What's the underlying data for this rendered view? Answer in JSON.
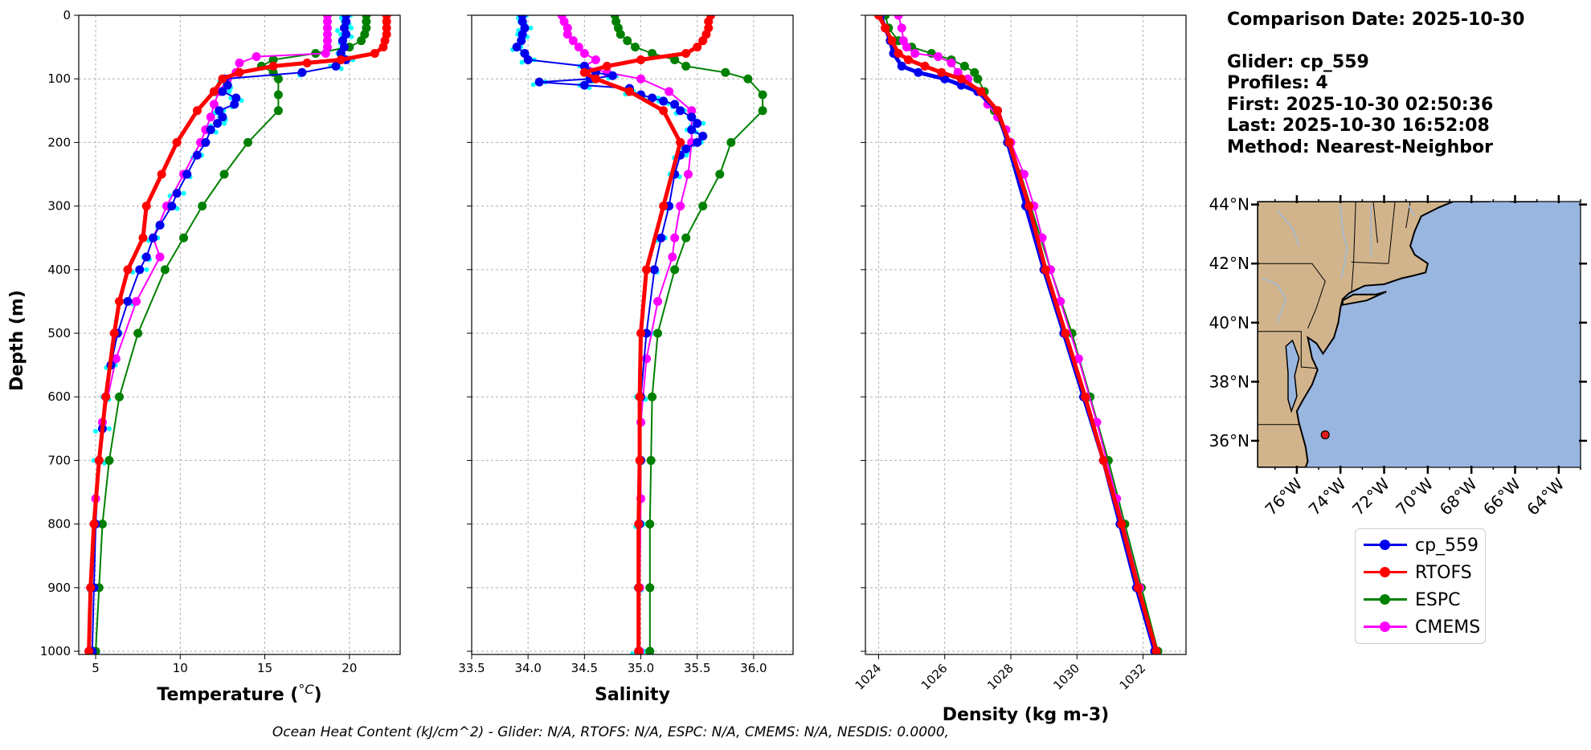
{
  "chart_data": {
    "type": "line",
    "y_axis": {
      "label": "Depth (m)",
      "range": [
        1005,
        0
      ],
      "ticks": [
        0,
        100,
        200,
        300,
        400,
        500,
        600,
        700,
        800,
        900,
        1000
      ],
      "inverted": true
    },
    "grid": "on",
    "series_colors": {
      "cp_559": "#0000ee",
      "RTOFS": "#ff0000",
      "ESPC": "#008000",
      "CMEMS": "#ff00ff",
      "glider_raw": "#00ffff"
    },
    "panels": [
      {
        "id": "temperature",
        "xlabel": "Temperature (°C)",
        "xlabel_main": "Temperature (",
        "xlabel_unit": "°C",
        "xlabel_tail": ")",
        "xlim": [
          4,
          23
        ],
        "xticks": [
          5,
          10,
          15,
          20
        ],
        "series": [
          {
            "name": "cp_559",
            "depth": [
              0,
              10,
              20,
              30,
              40,
              50,
              60,
              70,
              80,
              90,
              100,
              110,
              120,
              130,
              140,
              150,
              160,
              170,
              180,
              200,
              220,
              250,
              280,
              300,
              330,
              350,
              380,
              400,
              450,
              500,
              550,
              600,
              650,
              700,
              800,
              900,
              1000
            ],
            "values": [
              19.8,
              19.8,
              19.7,
              19.8,
              19.6,
              19.7,
              19.5,
              19.8,
              19.2,
              17.2,
              12.6,
              12.8,
              12.5,
              13.3,
              13.2,
              12.3,
              12.5,
              12.2,
              11.8,
              11.5,
              11.0,
              10.4,
              9.8,
              9.5,
              8.8,
              8.4,
              8.0,
              7.6,
              6.9,
              6.3,
              5.9,
              5.6,
              5.4,
              5.2,
              5.0,
              4.9,
              4.8
            ]
          },
          {
            "name": "RTOFS",
            "depth": [
              0,
              10,
              20,
              30,
              40,
              50,
              60,
              70,
              75,
              80,
              90,
              100,
              120,
              150,
              200,
              250,
              300,
              350,
              400,
              450,
              500,
              600,
              700,
              800,
              900,
              1000
            ],
            "values": [
              22.2,
              22.2,
              22.2,
              22.2,
              22.1,
              22.0,
              21.5,
              19.5,
              17.5,
              15.5,
              13.5,
              12.5,
              12.0,
              11.0,
              9.8,
              8.9,
              8.0,
              7.8,
              6.9,
              6.4,
              6.1,
              5.6,
              5.2,
              4.9,
              4.7,
              4.6
            ]
          },
          {
            "name": "ESPC",
            "depth": [
              0,
              10,
              20,
              30,
              40,
              50,
              60,
              70,
              80,
              90,
              100,
              125,
              150,
              200,
              250,
              300,
              350,
              400,
              500,
              600,
              700,
              800,
              900,
              1000
            ],
            "values": [
              21.0,
              21.0,
              21.0,
              20.9,
              20.7,
              20.0,
              18.0,
              15.5,
              14.8,
              15.5,
              15.8,
              15.8,
              15.8,
              14.0,
              12.6,
              11.3,
              10.2,
              9.1,
              7.5,
              6.4,
              5.8,
              5.4,
              5.2,
              5.0
            ]
          },
          {
            "name": "CMEMS",
            "depth": [
              0,
              10,
              20,
              30,
              40,
              50,
              60,
              65,
              75,
              90,
              100,
              120,
              140,
              160,
              180,
              200,
              250,
              300,
              350,
              380,
              450,
              540,
              640,
              760,
              900,
              1000
            ],
            "values": [
              18.7,
              18.7,
              18.7,
              18.7,
              18.7,
              18.7,
              18.6,
              14.5,
              13.5,
              13.3,
              12.8,
              12.3,
              12.0,
              11.8,
              11.5,
              11.2,
              10.2,
              9.2,
              8.4,
              8.8,
              7.4,
              6.2,
              5.4,
              5.0,
              4.7,
              4.6
            ]
          }
        ]
      },
      {
        "id": "salinity",
        "xlabel": "Salinity",
        "xlim": [
          33.5,
          36.35
        ],
        "xticks": [
          33.5,
          34.0,
          34.5,
          35.0,
          35.5,
          36.0
        ],
        "series": [
          {
            "name": "cp_559",
            "depth": [
              0,
              10,
              20,
              30,
              40,
              50,
              60,
              70,
              80,
              90,
              95,
              100,
              105,
              110,
              115,
              120,
              125,
              130,
              135,
              140,
              150,
              160,
              170,
              180,
              190,
              200,
              210,
              220,
              250,
              300,
              350,
              400,
              500,
              600,
              700,
              800,
              900,
              1000
            ],
            "values": [
              33.95,
              33.95,
              33.97,
              33.95,
              33.94,
              33.9,
              33.97,
              34.0,
              34.5,
              34.6,
              34.75,
              34.55,
              34.1,
              34.5,
              34.9,
              34.9,
              35.0,
              35.1,
              35.2,
              35.3,
              35.35,
              35.45,
              35.5,
              35.45,
              35.55,
              35.5,
              35.4,
              35.35,
              35.3,
              35.25,
              35.18,
              35.12,
              35.05,
              35.0,
              35.0,
              34.99,
              34.98,
              34.98
            ]
          },
          {
            "name": "RTOFS",
            "depth": [
              0,
              10,
              20,
              30,
              40,
              50,
              60,
              70,
              80,
              90,
              100,
              120,
              150,
              200,
              300,
              400,
              500,
              600,
              700,
              800,
              900,
              1000
            ],
            "values": [
              35.62,
              35.6,
              35.6,
              35.58,
              35.55,
              35.5,
              35.4,
              35.0,
              34.7,
              34.5,
              34.6,
              34.9,
              35.2,
              35.35,
              35.2,
              35.05,
              35.0,
              34.99,
              34.99,
              34.98,
              34.98,
              34.98
            ]
          },
          {
            "name": "ESPC",
            "depth": [
              0,
              10,
              20,
              30,
              40,
              50,
              60,
              70,
              80,
              90,
              100,
              125,
              150,
              200,
              250,
              300,
              350,
              400,
              500,
              600,
              700,
              800,
              900,
              1000
            ],
            "values": [
              34.77,
              34.78,
              34.8,
              34.82,
              34.88,
              34.95,
              35.1,
              35.3,
              35.4,
              35.75,
              35.95,
              36.08,
              36.08,
              35.8,
              35.7,
              35.55,
              35.4,
              35.3,
              35.15,
              35.1,
              35.09,
              35.08,
              35.08,
              35.08
            ]
          },
          {
            "name": "CMEMS",
            "depth": [
              0,
              10,
              20,
              30,
              40,
              50,
              60,
              70,
              80,
              90,
              100,
              120,
              150,
              200,
              250,
              300,
              350,
              380,
              450,
              540,
              640,
              760,
              900,
              1000
            ],
            "values": [
              34.3,
              34.32,
              34.35,
              34.35,
              34.4,
              34.45,
              34.5,
              34.6,
              34.5,
              34.7,
              35.0,
              35.25,
              35.45,
              35.45,
              35.42,
              35.35,
              35.3,
              35.28,
              35.15,
              35.05,
              35.0,
              35.0,
              34.99,
              34.99
            ]
          }
        ]
      },
      {
        "id": "density",
        "xlabel": "Density (kg m-3)",
        "xlim": [
          1023.6,
          1033.3
        ],
        "xticks": [
          1024,
          1026,
          1028,
          1030,
          1032
        ],
        "tick_rotation": -45,
        "series": [
          {
            "name": "cp_559",
            "depth": [
              0,
              20,
              40,
              60,
              80,
              90,
              100,
              110,
              120,
              150,
              200,
              300,
              400,
              500,
              600,
              700,
              800,
              900,
              1000
            ],
            "values": [
              1024.05,
              1024.2,
              1024.35,
              1024.45,
              1024.7,
              1025.2,
              1026.0,
              1026.5,
              1027.0,
              1027.6,
              1027.9,
              1028.45,
              1029.0,
              1029.6,
              1030.2,
              1030.8,
              1031.3,
              1031.8,
              1032.35
            ]
          },
          {
            "name": "RTOFS",
            "depth": [
              0,
              20,
              40,
              60,
              70,
              80,
              90,
              100,
              120,
              150,
              200,
              300,
              400,
              500,
              600,
              700,
              800,
              900,
              1000
            ],
            "values": [
              1024.0,
              1024.2,
              1024.4,
              1024.6,
              1024.9,
              1025.4,
              1025.9,
              1026.5,
              1027.1,
              1027.6,
              1027.95,
              1028.55,
              1029.05,
              1029.65,
              1030.25,
              1030.8,
              1031.35,
              1031.85,
              1032.4
            ]
          },
          {
            "name": "ESPC",
            "depth": [
              0,
              20,
              40,
              50,
              60,
              70,
              80,
              90,
              100,
              120,
              150,
              200,
              250,
              300,
              400,
              500,
              600,
              700,
              800,
              900,
              1000
            ],
            "values": [
              1024.2,
              1024.3,
              1024.6,
              1025.0,
              1025.6,
              1026.2,
              1026.6,
              1026.9,
              1027.0,
              1027.2,
              1027.5,
              1027.9,
              1028.3,
              1028.6,
              1029.2,
              1029.85,
              1030.4,
              1030.95,
              1031.45,
              1031.95,
              1032.45
            ]
          },
          {
            "name": "CMEMS",
            "depth": [
              0,
              20,
              40,
              50,
              60,
              65,
              75,
              90,
              100,
              120,
              140,
              160,
              180,
              200,
              250,
              300,
              350,
              400,
              450,
              540,
              640,
              760,
              900,
              1000
            ],
            "values": [
              1024.6,
              1024.7,
              1024.75,
              1024.85,
              1025.1,
              1025.8,
              1026.2,
              1026.4,
              1026.7,
              1027.0,
              1027.3,
              1027.6,
              1027.85,
              1028.0,
              1028.4,
              1028.7,
              1028.95,
              1029.2,
              1029.5,
              1030.05,
              1030.6,
              1031.2,
              1031.9,
              1032.35
            ]
          }
        ]
      }
    ],
    "map": {
      "lat_ticks": [
        "44°N",
        "42°N",
        "40°N",
        "38°N",
        "36°N"
      ],
      "lon_ticks": [
        "76°W",
        "74°W",
        "72°W",
        "70°W",
        "68°W",
        "66°W",
        "64°W"
      ],
      "lat_values": [
        44,
        42,
        40,
        38,
        36
      ],
      "lon_values": [
        -76,
        -74,
        -72,
        -70,
        -68,
        -66,
        -64
      ],
      "extent": {
        "lon": [
          -77.8,
          -63.0
        ],
        "lat": [
          35.1,
          44.1
        ]
      },
      "land_color": "#d2b48c",
      "ocean_color": "#99b6e0",
      "marker": {
        "lon": -74.7,
        "lat": 36.2,
        "color": "#e31a1c"
      }
    }
  },
  "info": {
    "comparison_date": "Comparison Date: 2025-10-30",
    "glider": "Glider: cp_559",
    "profiles": "Profiles: 4",
    "first": "First: 2025-10-30 02:50:36",
    "last": "Last: 2025-10-30 16:52:08",
    "method": "Method: Nearest-Neighbor"
  },
  "legend": [
    {
      "label": "cp_559",
      "color": "#0000ee"
    },
    {
      "label": "RTOFS",
      "color": "#ff0000"
    },
    {
      "label": "ESPC",
      "color": "#008000"
    },
    {
      "label": "CMEMS",
      "color": "#ff00ff"
    }
  ],
  "footer": "Ocean Heat Content (kJ/cm^2) - Glider: N/A,  RTOFS: N/A,  ESPC: N/A,  CMEMS: N/A,  NESDIS: 0.0000,"
}
